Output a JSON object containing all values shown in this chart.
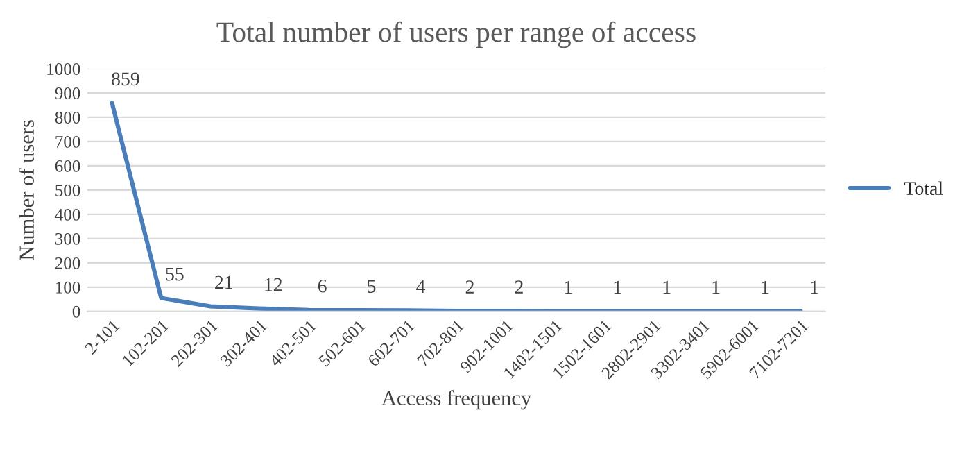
{
  "chart_data": {
    "type": "line",
    "title": "Total number of users per range of access",
    "xlabel": "Access frequency",
    "ylabel": "Number of users",
    "categories": [
      "2-101",
      "102-201",
      "202-301",
      "302-401",
      "402-501",
      "502-601",
      "602-701",
      "702-801",
      "902-1001",
      "1402-1501",
      "1502-1601",
      "2802-2901",
      "3302-3401",
      "5902-6001",
      "7102-7201"
    ],
    "series": [
      {
        "name": "Total",
        "color": "#4a7ebb",
        "values": [
          859,
          55,
          21,
          12,
          6,
          5,
          4,
          2,
          2,
          1,
          1,
          1,
          1,
          1,
          1
        ]
      }
    ],
    "ylim": [
      0,
      1000
    ],
    "yticks": [
      0,
      100,
      200,
      300,
      400,
      500,
      600,
      700,
      800,
      900,
      1000
    ],
    "grid": "y",
    "legend": "right",
    "data_labels": true,
    "marker": "none",
    "line_style": "solid"
  }
}
